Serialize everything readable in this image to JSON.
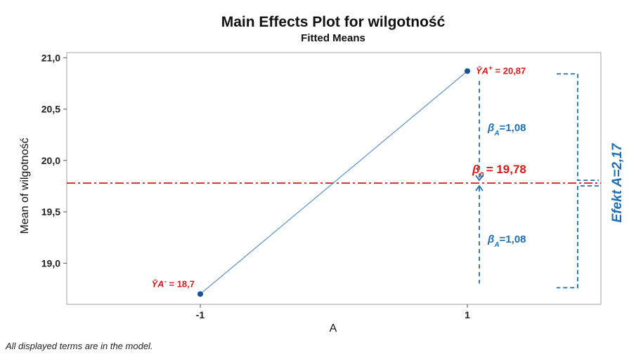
{
  "chart_data": {
    "type": "line",
    "title": "Main Effects Plot for wilgotność",
    "subtitle": "Fitted Means",
    "xlabel": "A",
    "ylabel": "Mean of wilgotność",
    "categories": [
      "-1",
      "1"
    ],
    "series": [
      {
        "values": [
          18.7,
          20.87
        ]
      }
    ],
    "ylim": [
      18.6,
      21.05
    ],
    "yticks": [
      19.0,
      19.5,
      20.0,
      20.5,
      21.0
    ],
    "ytick_labels": [
      "19,0",
      "19,5",
      "20,0",
      "20,5",
      "21,0"
    ],
    "reference_line": {
      "value": 19.78
    },
    "grid": false,
    "colors": {
      "series": "#5b8fc7",
      "point": "#1a4f9c",
      "reference": "#d51a1a",
      "annotation_blue": "#1f6fb2"
    },
    "annotations": {
      "low_point": {
        "prefix": "Ȳ",
        "letter": "A",
        "sup": "-",
        "value": " = 18,7"
      },
      "high_point": {
        "prefix": "Ȳ",
        "letter": "A",
        "sup": "+",
        "value": " = 20,87"
      },
      "beta0": {
        "symbol": "β",
        "sub": "0",
        "value": "= 19,78"
      },
      "beta_a_upper": {
        "symbol": "β",
        "sub": "A",
        "value": "=1,08"
      },
      "beta_a_lower": {
        "symbol": "β",
        "sub": "A",
        "value": "=1,08"
      },
      "effect": "Efekt A=2,17"
    },
    "footnote": "All displayed terms are in the model."
  }
}
